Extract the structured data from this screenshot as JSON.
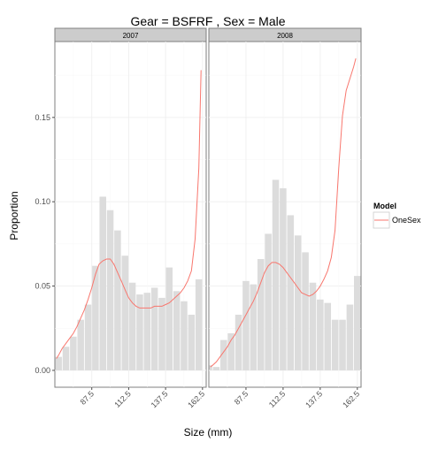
{
  "chart_data": {
    "type": "bar",
    "title": "Gear = BSFRF , Sex = Male",
    "xlabel": "Size (mm)",
    "ylabel": "Proportion",
    "xlim": [
      62.5,
      165
    ],
    "ylim": [
      -0.01,
      0.195
    ],
    "x_ticks": [
      87.5,
      112.5,
      137.5,
      162.5
    ],
    "x_tick_labels": [
      "87.5",
      "112.5",
      "137.5",
      "162.5"
    ],
    "y_ticks": [
      0,
      0.05,
      0.1,
      0.15
    ],
    "y_tick_labels": [
      "0.00",
      "0.05",
      "0.10",
      "0.15"
    ],
    "grid": true,
    "legend": {
      "title": "Model",
      "position": "right",
      "entries": [
        {
          "label": "OneSex",
          "color": "#f8766d"
        }
      ]
    },
    "bar_x": [
      65,
      70,
      75,
      80,
      85,
      90,
      95,
      100,
      105,
      110,
      115,
      120,
      125,
      130,
      135,
      140,
      145,
      150,
      155,
      160
    ],
    "panels": [
      {
        "strip": "2007",
        "bars": [
          0.008,
          0.014,
          0.02,
          0.03,
          0.039,
          0.062,
          0.103,
          0.095,
          0.083,
          0.068,
          0.052,
          0.045,
          0.046,
          0.049,
          0.043,
          0.061,
          0.047,
          0.041,
          0.033,
          0.054
        ],
        "series": [
          {
            "name": "OneSex",
            "x": [
              63.5,
              65,
              67.5,
              70,
              72.5,
              75,
              77.5,
              80,
              82.5,
              85,
              87.5,
              90,
              92.5,
              95,
              97.5,
              100,
              102.5,
              105,
              107.5,
              110,
              112.5,
              115,
              117.5,
              120,
              122.5,
              125,
              127.5,
              130,
              132.5,
              135,
              137.5,
              140,
              142.5,
              145,
              147.5,
              150,
              152.5,
              155,
              157.5,
              160,
              161.5
            ],
            "y": [
              0.007,
              0.009,
              0.013,
              0.016,
              0.019,
              0.022,
              0.026,
              0.031,
              0.036,
              0.042,
              0.049,
              0.057,
              0.063,
              0.065,
              0.066,
              0.066,
              0.063,
              0.058,
              0.053,
              0.048,
              0.043,
              0.04,
              0.038,
              0.037,
              0.037,
              0.037,
              0.037,
              0.038,
              0.038,
              0.038,
              0.039,
              0.04,
              0.042,
              0.044,
              0.046,
              0.049,
              0.053,
              0.059,
              0.078,
              0.12,
              0.178
            ]
          }
        ]
      },
      {
        "strip": "2008",
        "bars": [
          0.003,
          0.002,
          0.018,
          0.022,
          0.033,
          0.053,
          0.051,
          0.066,
          0.081,
          0.113,
          0.108,
          0.092,
          0.08,
          0.07,
          0.052,
          0.042,
          0.04,
          0.03,
          0.03,
          0.039,
          0.056
        ],
        "bar_x": [
          62.5,
          67.5,
          72.5,
          77.5,
          82.5,
          87.5,
          92.5,
          97.5,
          102.5,
          107.5,
          112.5,
          117.5,
          122.5,
          127.5,
          132.5,
          137.5,
          142.5,
          147.5,
          152.5,
          157.5,
          162.5
        ],
        "series": [
          {
            "name": "OneSex",
            "x": [
              63.5,
              65,
              67.5,
              70,
              72.5,
              75,
              77.5,
              80,
              82.5,
              85,
              87.5,
              90,
              92.5,
              95,
              97.5,
              100,
              102.5,
              105,
              107.5,
              110,
              112.5,
              115,
              117.5,
              120,
              122.5,
              125,
              127.5,
              130,
              132.5,
              135,
              137.5,
              140,
              142.5,
              145,
              147.5,
              150,
              152.5,
              155,
              157.5,
              160,
              161.5
            ],
            "y": [
              0.002,
              0.003,
              0.005,
              0.008,
              0.011,
              0.014,
              0.018,
              0.021,
              0.025,
              0.029,
              0.033,
              0.037,
              0.041,
              0.046,
              0.052,
              0.058,
              0.062,
              0.064,
              0.064,
              0.063,
              0.061,
              0.058,
              0.055,
              0.052,
              0.049,
              0.046,
              0.045,
              0.044,
              0.045,
              0.047,
              0.05,
              0.054,
              0.059,
              0.067,
              0.083,
              0.12,
              0.151,
              0.166,
              0.173,
              0.18,
              0.185
            ]
          }
        ]
      }
    ]
  }
}
